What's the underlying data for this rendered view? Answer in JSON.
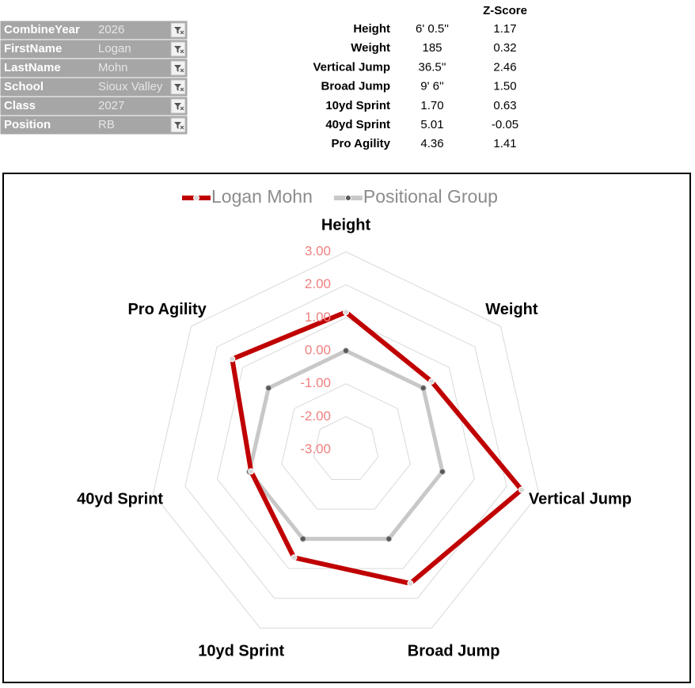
{
  "filters": [
    {
      "label": "CombineYear",
      "value": "2026"
    },
    {
      "label": "FirstName",
      "value": "Logan"
    },
    {
      "label": "LastName",
      "value": "Mohn"
    },
    {
      "label": "School",
      "value": "Sioux Valley"
    },
    {
      "label": "Class",
      "value": "2027"
    },
    {
      "label": "Position",
      "value": "RB"
    }
  ],
  "table": {
    "header": "Z-Score",
    "rows": [
      [
        "Height",
        "6' 0.5''",
        "1.17"
      ],
      [
        "Weight",
        "185",
        "0.32"
      ],
      [
        "Vertical Jump",
        "36.5''",
        "2.46"
      ],
      [
        "Broad Jump",
        "9' 6''",
        "1.50"
      ],
      [
        "10yd Sprint",
        "1.70",
        "0.63"
      ],
      [
        "40yd Sprint",
        "5.01",
        "-0.05"
      ],
      [
        "Pro Agility",
        "4.36",
        "1.41"
      ]
    ]
  },
  "chart_data": {
    "type": "radar",
    "categories": [
      "Height",
      "Weight",
      "Vertical Jump",
      "Broad Jump",
      "10yd Sprint",
      "40yd Sprint",
      "Pro Agility"
    ],
    "series": [
      {
        "name": "Logan Mohn",
        "color": "#c00000",
        "values": [
          1.17,
          0.32,
          2.46,
          1.5,
          0.63,
          -0.05,
          1.41
        ]
      },
      {
        "name": "Positional Group",
        "color": "#c8c8c8",
        "values": [
          0,
          0,
          0,
          0,
          0,
          0,
          0
        ]
      }
    ],
    "rlim": [
      -3,
      3
    ],
    "rticks": [
      {
        "value": -3,
        "label": "-3.00"
      },
      {
        "value": -2,
        "label": "-2.00"
      },
      {
        "value": -1,
        "label": "-1.00"
      },
      {
        "value": 0,
        "label": "0.00"
      },
      {
        "value": 1,
        "label": "1.00"
      },
      {
        "value": 2,
        "label": "2.00"
      },
      {
        "value": 3,
        "label": "3.00"
      }
    ],
    "grid": true,
    "legend": "top"
  }
}
